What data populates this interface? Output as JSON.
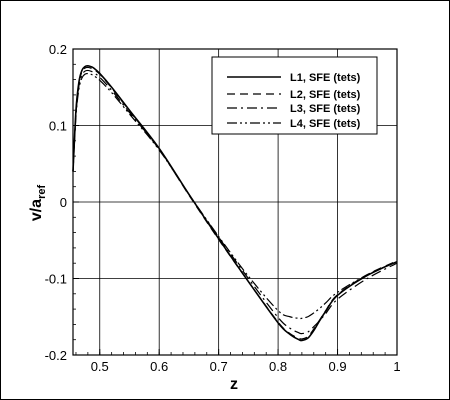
{
  "chart_data": {
    "type": "line",
    "xlabel": "z",
    "ylabel_main": "v/a",
    "ylabel_sub": "ref",
    "xlim": [
      0.455,
      1.0
    ],
    "ylim": [
      -0.2,
      0.2
    ],
    "xticks": [
      0.5,
      0.6,
      0.7,
      0.8,
      0.9,
      1
    ],
    "xtick_labels": [
      "0.5",
      "0.6",
      "0.7",
      "0.8",
      "0.9",
      "1"
    ],
    "yticks": [
      0.2,
      0.1,
      0,
      -0.1,
      -0.2
    ],
    "ytick_labels": [
      "0.2",
      "0.1",
      "0",
      "-0.1",
      "-0.2"
    ],
    "grid": true,
    "legend_position": "top-right",
    "series": [
      {
        "name": "L1, SFE (tets)",
        "dash": "none",
        "x": [
          0.455,
          0.46,
          0.465,
          0.47,
          0.475,
          0.48,
          0.485,
          0.49,
          0.5,
          0.52,
          0.55,
          0.6,
          0.65,
          0.7,
          0.75,
          0.8,
          0.82,
          0.835,
          0.84,
          0.85,
          0.86,
          0.87,
          0.88,
          0.9,
          0.95,
          1.0
        ],
        "y": [
          0.04,
          0.12,
          0.157,
          0.172,
          0.177,
          0.178,
          0.177,
          0.175,
          0.168,
          0.15,
          0.12,
          0.07,
          0.01,
          -0.048,
          -0.104,
          -0.158,
          -0.173,
          -0.18,
          -0.181,
          -0.178,
          -0.168,
          -0.155,
          -0.143,
          -0.122,
          -0.096,
          -0.078
        ]
      },
      {
        "name": "L2, SFE (tets)",
        "dash": "8,5",
        "x": [
          0.455,
          0.46,
          0.465,
          0.47,
          0.475,
          0.48,
          0.485,
          0.49,
          0.5,
          0.52,
          0.55,
          0.6,
          0.65,
          0.7,
          0.75,
          0.8,
          0.82,
          0.835,
          0.84,
          0.85,
          0.86,
          0.87,
          0.88,
          0.9,
          0.95,
          1.0
        ],
        "y": [
          0.04,
          0.118,
          0.155,
          0.17,
          0.175,
          0.176,
          0.175,
          0.173,
          0.167,
          0.149,
          0.119,
          0.069,
          0.009,
          -0.049,
          -0.104,
          -0.157,
          -0.172,
          -0.178,
          -0.179,
          -0.176,
          -0.166,
          -0.154,
          -0.142,
          -0.121,
          -0.095,
          -0.077
        ]
      },
      {
        "name": "L3, SFE (tets)",
        "dash": "10,4,2,4",
        "x": [
          0.455,
          0.46,
          0.465,
          0.47,
          0.475,
          0.48,
          0.485,
          0.49,
          0.5,
          0.52,
          0.55,
          0.6,
          0.65,
          0.7,
          0.75,
          0.8,
          0.82,
          0.835,
          0.84,
          0.85,
          0.86,
          0.87,
          0.88,
          0.9,
          0.95,
          1.0
        ],
        "y": [
          0.04,
          0.115,
          0.152,
          0.166,
          0.171,
          0.172,
          0.171,
          0.169,
          0.163,
          0.146,
          0.117,
          0.069,
          0.01,
          -0.046,
          -0.1,
          -0.151,
          -0.165,
          -0.171,
          -0.172,
          -0.17,
          -0.163,
          -0.155,
          -0.146,
          -0.127,
          -0.1,
          -0.08
        ]
      },
      {
        "name": "L4, SFE (tets)",
        "dash": "10,3,2,3,2,3",
        "x": [
          0.455,
          0.46,
          0.465,
          0.47,
          0.475,
          0.48,
          0.485,
          0.49,
          0.5,
          0.52,
          0.55,
          0.6,
          0.65,
          0.7,
          0.75,
          0.8,
          0.82,
          0.835,
          0.84,
          0.85,
          0.86,
          0.87,
          0.88,
          0.9,
          0.95,
          1.0
        ],
        "y": [
          0.04,
          0.112,
          0.148,
          0.162,
          0.167,
          0.168,
          0.167,
          0.165,
          0.159,
          0.143,
          0.115,
          0.068,
          0.01,
          -0.045,
          -0.097,
          -0.142,
          -0.15,
          -0.152,
          -0.152,
          -0.15,
          -0.145,
          -0.139,
          -0.132,
          -0.118,
          -0.095,
          -0.078
        ]
      }
    ]
  }
}
